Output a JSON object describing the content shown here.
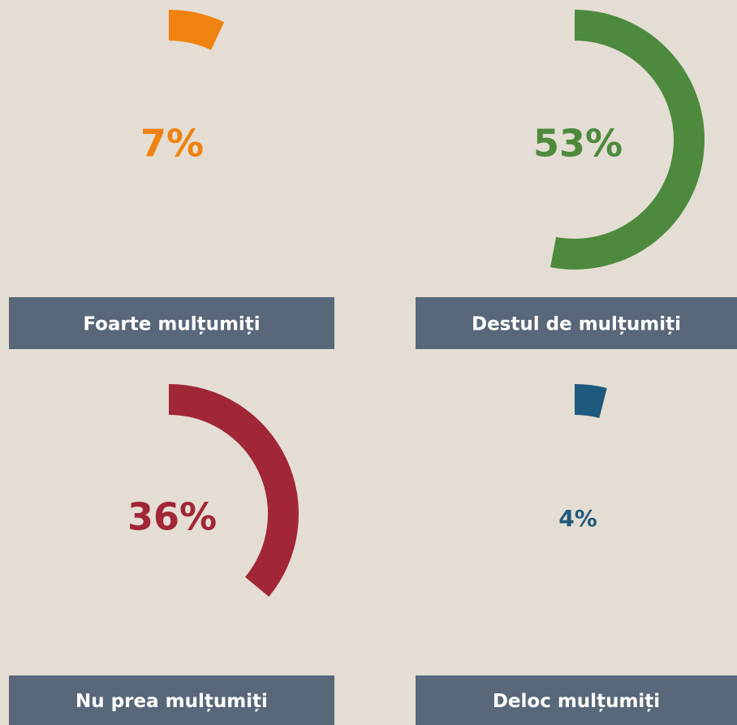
{
  "chart_data": [
    {
      "type": "gauge",
      "label": "Foarte mulțumiți",
      "value": 7,
      "value_label": "7%",
      "color": "#f0820f"
    },
    {
      "type": "gauge",
      "label": "Destul de mulțumiți",
      "value": 53,
      "value_label": "53%",
      "color": "#4e8a3e"
    },
    {
      "type": "gauge",
      "label": "Nu prea mulțumiți",
      "value": 36,
      "value_label": "36%",
      "color": "#a12736"
    },
    {
      "type": "gauge",
      "label": "Deloc mulțumiți",
      "value": 4,
      "value_label": "4%",
      "color": "#1f5a7e"
    }
  ]
}
